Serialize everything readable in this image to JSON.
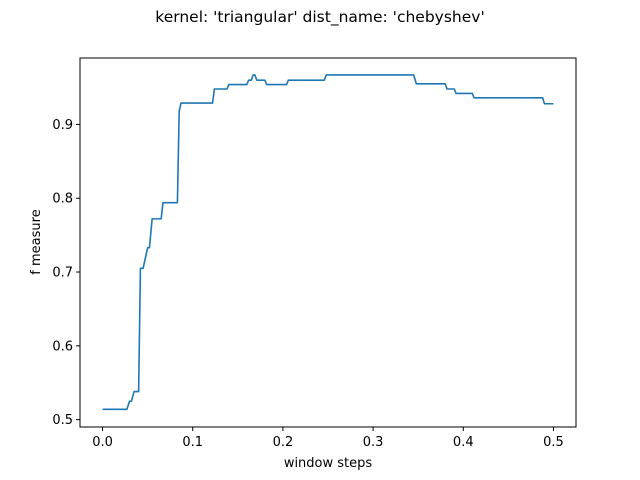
{
  "chart_data": {
    "type": "line",
    "title": "kernel: 'triangular' dist_name: 'chebyshev'",
    "xlabel": "window steps",
    "ylabel": "f measure",
    "xlim": [
      -0.025,
      0.525
    ],
    "ylim": [
      0.49,
      0.99
    ],
    "xticks": [
      0.0,
      0.1,
      0.2,
      0.3,
      0.4,
      0.5
    ],
    "xtick_labels": [
      "0.0",
      "0.1",
      "0.2",
      "0.3",
      "0.4",
      "0.5"
    ],
    "yticks": [
      0.5,
      0.6,
      0.7,
      0.8,
      0.9
    ],
    "ytick_labels": [
      "0.5",
      "0.6",
      "0.7",
      "0.8",
      "0.9"
    ],
    "grid": false,
    "line_color": "#1f77b4",
    "series": [
      {
        "x": [
          0.0,
          0.025,
          0.027,
          0.03,
          0.032,
          0.035,
          0.037,
          0.04,
          0.042,
          0.045,
          0.05,
          0.052,
          0.055,
          0.06,
          0.065,
          0.067,
          0.075,
          0.08,
          0.083,
          0.085,
          0.087,
          0.09,
          0.122,
          0.124,
          0.138,
          0.14,
          0.16,
          0.162,
          0.165,
          0.167,
          0.169,
          0.171,
          0.173,
          0.176,
          0.18,
          0.182,
          0.204,
          0.206,
          0.246,
          0.248,
          0.345,
          0.348,
          0.38,
          0.382,
          0.39,
          0.392,
          0.41,
          0.412,
          0.488,
          0.49,
          0.5
        ],
        "y": [
          0.514,
          0.514,
          0.514,
          0.525,
          0.525,
          0.538,
          0.538,
          0.538,
          0.705,
          0.705,
          0.733,
          0.733,
          0.772,
          0.772,
          0.772,
          0.794,
          0.794,
          0.794,
          0.794,
          0.918,
          0.929,
          0.929,
          0.929,
          0.948,
          0.948,
          0.954,
          0.954,
          0.96,
          0.96,
          0.967,
          0.967,
          0.96,
          0.96,
          0.96,
          0.96,
          0.954,
          0.954,
          0.96,
          0.96,
          0.967,
          0.967,
          0.955,
          0.955,
          0.948,
          0.948,
          0.942,
          0.942,
          0.936,
          0.936,
          0.928,
          0.928
        ]
      }
    ]
  }
}
